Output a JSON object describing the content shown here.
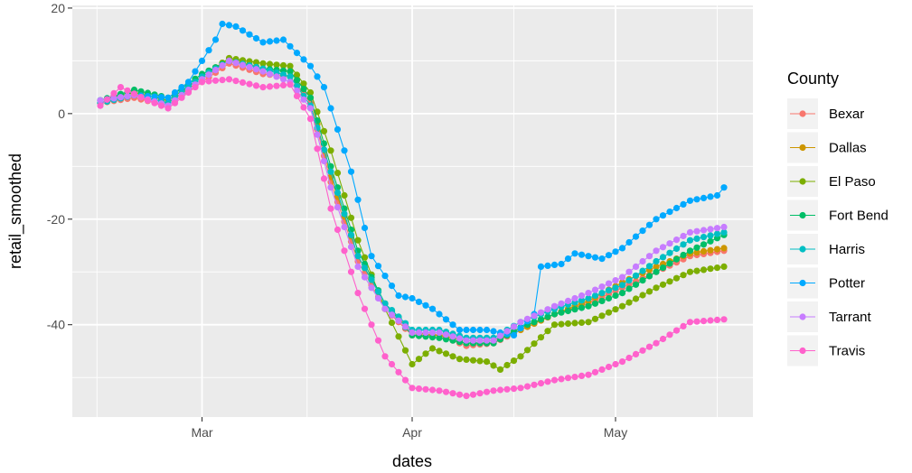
{
  "chart_data": {
    "type": "line",
    "title": "",
    "xlabel": "dates",
    "ylabel": "retail_smoothed",
    "x_range": [
      "2020-02-15",
      "2020-05-17"
    ],
    "ylim": [
      -57.5,
      20.5
    ],
    "x_ticks": [
      {
        "date": "2020-03-01",
        "label": "Mar"
      },
      {
        "date": "2020-04-01",
        "label": "Apr"
      },
      {
        "date": "2020-05-01",
        "label": "May"
      }
    ],
    "y_ticks": [
      {
        "value": 20,
        "label": "20"
      },
      {
        "value": 0,
        "label": "0"
      },
      {
        "value": -20,
        "label": "-20"
      },
      {
        "value": -40,
        "label": "-40"
      }
    ],
    "grid": true,
    "markers": "points-with-lines",
    "legend": {
      "title": "County",
      "position": "right"
    },
    "series": [
      {
        "name": "Bexar",
        "color": "#F8766D",
        "points": [
          [
            "2020-02-15",
            2
          ],
          [
            "2020-02-20",
            3
          ],
          [
            "2020-02-25",
            1.5
          ],
          [
            "2020-03-01",
            6
          ],
          [
            "2020-03-05",
            9.5
          ],
          [
            "2020-03-10",
            7.5
          ],
          [
            "2020-03-14",
            7
          ],
          [
            "2020-03-17",
            2
          ],
          [
            "2020-03-20",
            -13
          ],
          [
            "2020-03-24",
            -28
          ],
          [
            "2020-03-28",
            -37
          ],
          [
            "2020-04-01",
            -42
          ],
          [
            "2020-04-05",
            -42
          ],
          [
            "2020-04-09",
            -44
          ],
          [
            "2020-04-13",
            -43.5
          ],
          [
            "2020-04-17",
            -41
          ],
          [
            "2020-04-22",
            -38
          ],
          [
            "2020-04-27",
            -36
          ],
          [
            "2020-05-02",
            -33
          ],
          [
            "2020-05-07",
            -30
          ],
          [
            "2020-05-12",
            -27
          ],
          [
            "2020-05-17",
            -26
          ]
        ]
      },
      {
        "name": "Dallas",
        "color": "#CD9600",
        "points": [
          [
            "2020-02-15",
            2
          ],
          [
            "2020-02-20",
            3.5
          ],
          [
            "2020-02-25",
            2
          ],
          [
            "2020-03-01",
            6.5
          ],
          [
            "2020-03-05",
            10.5
          ],
          [
            "2020-03-10",
            8.5
          ],
          [
            "2020-03-14",
            8
          ],
          [
            "2020-03-17",
            3
          ],
          [
            "2020-03-20",
            -12
          ],
          [
            "2020-03-24",
            -27
          ],
          [
            "2020-03-28",
            -36
          ],
          [
            "2020-04-01",
            -41.5
          ],
          [
            "2020-04-05",
            -42
          ],
          [
            "2020-04-09",
            -43
          ],
          [
            "2020-04-13",
            -43
          ],
          [
            "2020-04-17",
            -41
          ],
          [
            "2020-04-22",
            -38
          ],
          [
            "2020-04-27",
            -35.5
          ],
          [
            "2020-05-02",
            -32
          ],
          [
            "2020-05-07",
            -29
          ],
          [
            "2020-05-12",
            -26.5
          ],
          [
            "2020-05-17",
            -25.5
          ]
        ]
      },
      {
        "name": "El Paso",
        "color": "#7CAE00",
        "points": [
          [
            "2020-02-15",
            2.5
          ],
          [
            "2020-02-20",
            4
          ],
          [
            "2020-02-25",
            2.5
          ],
          [
            "2020-03-01",
            7
          ],
          [
            "2020-03-05",
            10.5
          ],
          [
            "2020-03-10",
            9.5
          ],
          [
            "2020-03-14",
            9
          ],
          [
            "2020-03-17",
            4
          ],
          [
            "2020-03-20",
            -7
          ],
          [
            "2020-03-24",
            -24
          ],
          [
            "2020-03-28",
            -37
          ],
          [
            "2020-04-01",
            -47.5
          ],
          [
            "2020-04-04",
            -44.5
          ],
          [
            "2020-04-08",
            -46.5
          ],
          [
            "2020-04-12",
            -47
          ],
          [
            "2020-04-14",
            -48.5
          ],
          [
            "2020-04-17",
            -46
          ],
          [
            "2020-04-22",
            -40
          ],
          [
            "2020-04-27",
            -39.5
          ],
          [
            "2020-05-02",
            -36.5
          ],
          [
            "2020-05-07",
            -33
          ],
          [
            "2020-05-12",
            -30
          ],
          [
            "2020-05-17",
            -29
          ]
        ]
      },
      {
        "name": "Fort Bend",
        "color": "#00BE67",
        "points": [
          [
            "2020-02-15",
            2.5
          ],
          [
            "2020-02-20",
            4.5
          ],
          [
            "2020-02-25",
            3
          ],
          [
            "2020-03-01",
            7.5
          ],
          [
            "2020-03-05",
            10
          ],
          [
            "2020-03-10",
            8.5
          ],
          [
            "2020-03-14",
            8
          ],
          [
            "2020-03-17",
            3
          ],
          [
            "2020-03-20",
            -10
          ],
          [
            "2020-03-24",
            -26
          ],
          [
            "2020-03-28",
            -36
          ],
          [
            "2020-04-01",
            -42
          ],
          [
            "2020-04-05",
            -42.5
          ],
          [
            "2020-04-09",
            -43.5
          ],
          [
            "2020-04-13",
            -43.5
          ],
          [
            "2020-04-17",
            -40.5
          ],
          [
            "2020-04-22",
            -38
          ],
          [
            "2020-04-27",
            -36.5
          ],
          [
            "2020-05-02",
            -34
          ],
          [
            "2020-05-07",
            -30
          ],
          [
            "2020-05-12",
            -26
          ],
          [
            "2020-05-17",
            -23
          ]
        ]
      },
      {
        "name": "Harris",
        "color": "#00BFC4",
        "points": [
          [
            "2020-02-15",
            2
          ],
          [
            "2020-02-20",
            3.5
          ],
          [
            "2020-02-25",
            2
          ],
          [
            "2020-03-01",
            7
          ],
          [
            "2020-03-05",
            10
          ],
          [
            "2020-03-10",
            8.5
          ],
          [
            "2020-03-14",
            7
          ],
          [
            "2020-03-17",
            1.5
          ],
          [
            "2020-03-20",
            -11
          ],
          [
            "2020-03-24",
            -27
          ],
          [
            "2020-03-28",
            -36
          ],
          [
            "2020-04-01",
            -41
          ],
          [
            "2020-04-05",
            -41
          ],
          [
            "2020-04-09",
            -42.5
          ],
          [
            "2020-04-13",
            -42.5
          ],
          [
            "2020-04-17",
            -39.5
          ],
          [
            "2020-04-22",
            -37
          ],
          [
            "2020-04-27",
            -35
          ],
          [
            "2020-05-02",
            -32.5
          ],
          [
            "2020-05-07",
            -28
          ],
          [
            "2020-05-12",
            -24
          ],
          [
            "2020-05-17",
            -22.5
          ]
        ]
      },
      {
        "name": "Potter",
        "color": "#00A9FF",
        "points": [
          [
            "2020-02-15",
            2.5
          ],
          [
            "2020-02-20",
            3.5
          ],
          [
            "2020-02-25",
            3
          ],
          [
            "2020-02-28",
            6
          ],
          [
            "2020-03-03",
            14
          ],
          [
            "2020-03-04",
            17
          ],
          [
            "2020-03-06",
            16.5
          ],
          [
            "2020-03-10",
            13.5
          ],
          [
            "2020-03-13",
            14
          ],
          [
            "2020-03-17",
            9
          ],
          [
            "2020-03-19",
            5
          ],
          [
            "2020-03-23",
            -11
          ],
          [
            "2020-03-26",
            -27
          ],
          [
            "2020-03-30",
            -34.5
          ],
          [
            "2020-04-01",
            -35
          ],
          [
            "2020-04-04",
            -37
          ],
          [
            "2020-04-08",
            -41
          ],
          [
            "2020-04-12",
            -41
          ],
          [
            "2020-04-16",
            -42
          ],
          [
            "2020-04-19",
            -38
          ],
          [
            "2020-04-20",
            -29
          ],
          [
            "2020-04-23",
            -28.5
          ],
          [
            "2020-04-25",
            -26.5
          ],
          [
            "2020-04-29",
            -27.5
          ],
          [
            "2020-05-02",
            -25.5
          ],
          [
            "2020-05-07",
            -20
          ],
          [
            "2020-05-12",
            -16.5
          ],
          [
            "2020-05-16",
            -15.5
          ],
          [
            "2020-05-17",
            -14
          ]
        ]
      },
      {
        "name": "Tarrant",
        "color": "#C77CFF",
        "points": [
          [
            "2020-02-15",
            2.5
          ],
          [
            "2020-02-20",
            3.5
          ],
          [
            "2020-02-25",
            1.5
          ],
          [
            "2020-03-01",
            6.5
          ],
          [
            "2020-03-05",
            10
          ],
          [
            "2020-03-10",
            8
          ],
          [
            "2020-03-14",
            6
          ],
          [
            "2020-03-17",
            1
          ],
          [
            "2020-03-20",
            -14
          ],
          [
            "2020-03-24",
            -29
          ],
          [
            "2020-03-28",
            -37
          ],
          [
            "2020-04-01",
            -41.5
          ],
          [
            "2020-04-05",
            -41.5
          ],
          [
            "2020-04-09",
            -43
          ],
          [
            "2020-04-13",
            -43
          ],
          [
            "2020-04-17",
            -39.5
          ],
          [
            "2020-04-22",
            -36.5
          ],
          [
            "2020-04-27",
            -34
          ],
          [
            "2020-05-02",
            -31
          ],
          [
            "2020-05-07",
            -26
          ],
          [
            "2020-05-12",
            -22.5
          ],
          [
            "2020-05-17",
            -21.5
          ]
        ]
      },
      {
        "name": "Travis",
        "color": "#FF61CC",
        "points": [
          [
            "2020-02-15",
            1.5
          ],
          [
            "2020-02-18",
            5
          ],
          [
            "2020-02-22",
            2.5
          ],
          [
            "2020-02-25",
            1
          ],
          [
            "2020-03-01",
            6
          ],
          [
            "2020-03-05",
            6.5
          ],
          [
            "2020-03-10",
            5
          ],
          [
            "2020-03-14",
            5.5
          ],
          [
            "2020-03-17",
            -1
          ],
          [
            "2020-03-20",
            -18
          ],
          [
            "2020-03-24",
            -34
          ],
          [
            "2020-03-28",
            -46
          ],
          [
            "2020-04-01",
            -52
          ],
          [
            "2020-04-05",
            -52.5
          ],
          [
            "2020-04-09",
            -53.5
          ],
          [
            "2020-04-13",
            -52.5
          ],
          [
            "2020-04-17",
            -52
          ],
          [
            "2020-04-22",
            -50.5
          ],
          [
            "2020-04-27",
            -49.5
          ],
          [
            "2020-05-02",
            -47
          ],
          [
            "2020-05-07",
            -43.5
          ],
          [
            "2020-05-12",
            -39.5
          ],
          [
            "2020-05-17",
            -39
          ]
        ]
      }
    ]
  }
}
